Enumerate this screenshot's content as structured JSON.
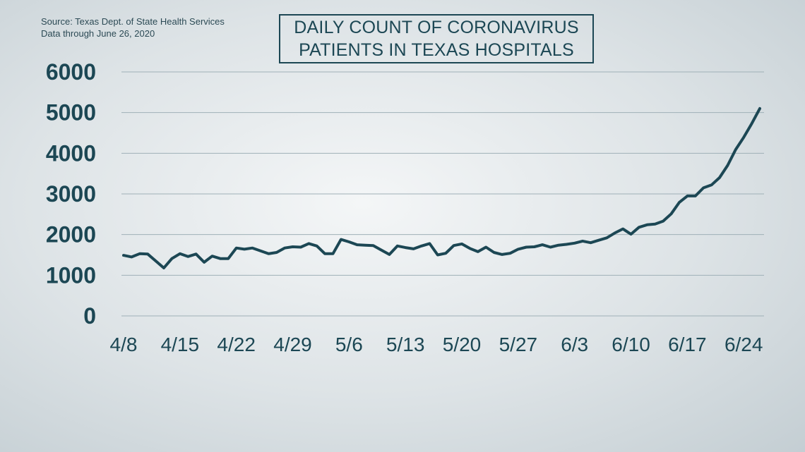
{
  "source": {
    "line1": "Source: Texas Dept. of State Health Services",
    "line2": "Data through June 26, 2020"
  },
  "title": {
    "line1": "DAILY COUNT OF CORONAVIRUS",
    "line2": "PATIENTS IN TEXAS HOSPITALS"
  },
  "colors": {
    "line": "#1c4754",
    "grid": "#9fb0b7",
    "text": "#1c4754"
  },
  "chart_data": {
    "type": "line",
    "title": "DAILY COUNT OF CORONAVIRUS PATIENTS IN TEXAS HOSPITALS",
    "xlabel": "",
    "ylabel": "",
    "ylim": [
      0,
      6000
    ],
    "grid": true,
    "y_ticks": [
      0,
      1000,
      2000,
      3000,
      4000,
      5000,
      6000
    ],
    "y_tick_labels": [
      "0",
      "1000",
      "2000",
      "3000",
      "4000",
      "5000",
      "6000"
    ],
    "x_tick_labels": [
      "4/8",
      "4/15",
      "4/22",
      "4/29",
      "5/6",
      "5/13",
      "5/20",
      "5/27",
      "6/3",
      "6/10",
      "6/17",
      "6/24"
    ],
    "x": [
      "4/8",
      "4/9",
      "4/10",
      "4/11",
      "4/12",
      "4/13",
      "4/14",
      "4/15",
      "4/16",
      "4/17",
      "4/18",
      "4/19",
      "4/20",
      "4/21",
      "4/22",
      "4/23",
      "4/24",
      "4/25",
      "4/26",
      "4/27",
      "4/28",
      "4/29",
      "4/30",
      "5/1",
      "5/2",
      "5/3",
      "5/4",
      "5/5",
      "5/6",
      "5/7",
      "5/8",
      "5/9",
      "5/10",
      "5/11",
      "5/12",
      "5/13",
      "5/14",
      "5/15",
      "5/16",
      "5/17",
      "5/18",
      "5/19",
      "5/20",
      "5/21",
      "5/22",
      "5/23",
      "5/24",
      "5/25",
      "5/26",
      "5/27",
      "5/28",
      "5/29",
      "5/30",
      "5/31",
      "6/1",
      "6/2",
      "6/3",
      "6/4",
      "6/5",
      "6/6",
      "6/7",
      "6/8",
      "6/9",
      "6/10",
      "6/11",
      "6/12",
      "6/13",
      "6/14",
      "6/15",
      "6/16",
      "6/17",
      "6/18",
      "6/19",
      "6/20",
      "6/21",
      "6/22",
      "6/23",
      "6/24",
      "6/25",
      "6/26"
    ],
    "series": [
      {
        "values": [
          1490,
          1450,
          1530,
          1520,
          1350,
          1180,
          1410,
          1530,
          1460,
          1520,
          1320,
          1470,
          1410,
          1410,
          1670,
          1640,
          1670,
          1600,
          1530,
          1560,
          1670,
          1700,
          1690,
          1780,
          1720,
          1530,
          1530,
          1880,
          1820,
          1750,
          1740,
          1730,
          1620,
          1510,
          1720,
          1680,
          1650,
          1720,
          1780,
          1500,
          1540,
          1730,
          1770,
          1660,
          1580,
          1690,
          1560,
          1510,
          1540,
          1640,
          1690,
          1700,
          1750,
          1690,
          1740,
          1760,
          1790,
          1840,
          1800,
          1860,
          1920,
          2040,
          2140,
          2010,
          2180,
          2240,
          2260,
          2330,
          2510,
          2790,
          2950,
          2950,
          3150,
          3220,
          3400,
          3700,
          4090,
          4390,
          4730,
          5100
        ]
      }
    ]
  }
}
